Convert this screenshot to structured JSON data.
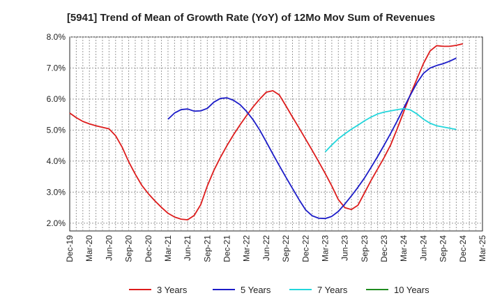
{
  "chart_data": {
    "type": "line",
    "title": "[5941]  Trend of Mean of Growth Rate (YoY) of 12Mo Mov Sum of Revenues",
    "xlabel": "",
    "ylabel": "",
    "ylim": [
      1.75,
      8.0
    ],
    "y_ticks": [
      2.0,
      3.0,
      4.0,
      5.0,
      6.0,
      7.0,
      8.0
    ],
    "y_tick_labels": [
      "2.0%",
      "3.0%",
      "4.0%",
      "5.0%",
      "6.0%",
      "7.0%",
      "8.0%"
    ],
    "x_tick_labels": [
      "Dec-19",
      "Mar-20",
      "Jun-20",
      "Sep-20",
      "Dec-20",
      "Mar-21",
      "Jun-21",
      "Sep-21",
      "Dec-21",
      "Mar-22",
      "Jun-22",
      "Sep-22",
      "Dec-22",
      "Mar-23",
      "Jun-23",
      "Sep-23",
      "Dec-23",
      "Mar-24",
      "Jun-24",
      "Sep-24",
      "Dec-24",
      "Mar-25"
    ],
    "x_start_month": "Dec-19",
    "x_range_months": [
      0,
      63
    ],
    "grid": true,
    "legend_position": "bottom",
    "series": [
      {
        "name": "3 Years",
        "color": "#dd1c1c",
        "start_month": 0,
        "values": [
          5.55,
          5.4,
          5.28,
          5.2,
          5.14,
          5.09,
          5.04,
          4.82,
          4.45,
          3.98,
          3.58,
          3.22,
          2.95,
          2.72,
          2.51,
          2.32,
          2.2,
          2.13,
          2.11,
          2.25,
          2.6,
          3.2,
          3.7,
          4.12,
          4.5,
          4.85,
          5.17,
          5.47,
          5.75,
          6.0,
          6.22,
          6.27,
          6.13,
          5.78,
          5.42,
          5.07,
          4.71,
          4.35,
          3.98,
          3.6,
          3.2,
          2.76,
          2.5,
          2.44,
          2.58,
          2.98,
          3.38,
          3.75,
          4.12,
          4.53,
          5.05,
          5.6,
          6.15,
          6.65,
          7.15,
          7.55,
          7.72,
          7.7,
          7.7,
          7.73,
          7.78
        ]
      },
      {
        "name": "5 Years",
        "color": "#1c1cc8",
        "start_month": 15,
        "values": [
          5.35,
          5.55,
          5.66,
          5.68,
          5.61,
          5.62,
          5.7,
          5.9,
          6.02,
          6.04,
          5.96,
          5.82,
          5.6,
          5.33,
          5.0,
          4.62,
          4.23,
          3.85,
          3.48,
          3.12,
          2.76,
          2.43,
          2.24,
          2.16,
          2.15,
          2.22,
          2.38,
          2.62,
          2.88,
          3.16,
          3.46,
          3.8,
          4.15,
          4.52,
          4.9,
          5.3,
          5.72,
          6.13,
          6.52,
          6.83,
          7.0,
          7.08,
          7.14,
          7.22,
          7.32
        ]
      },
      {
        "name": "7 Years",
        "color": "#22d6dc",
        "start_month": 39,
        "values": [
          4.3,
          4.52,
          4.72,
          4.88,
          5.03,
          5.16,
          5.3,
          5.42,
          5.52,
          5.58,
          5.62,
          5.66,
          5.69,
          5.65,
          5.52,
          5.35,
          5.22,
          5.14,
          5.1,
          5.06,
          5.02
        ]
      },
      {
        "name": "10 Years",
        "color": "#1f8c1f",
        "start_month": 0,
        "values": []
      }
    ]
  }
}
